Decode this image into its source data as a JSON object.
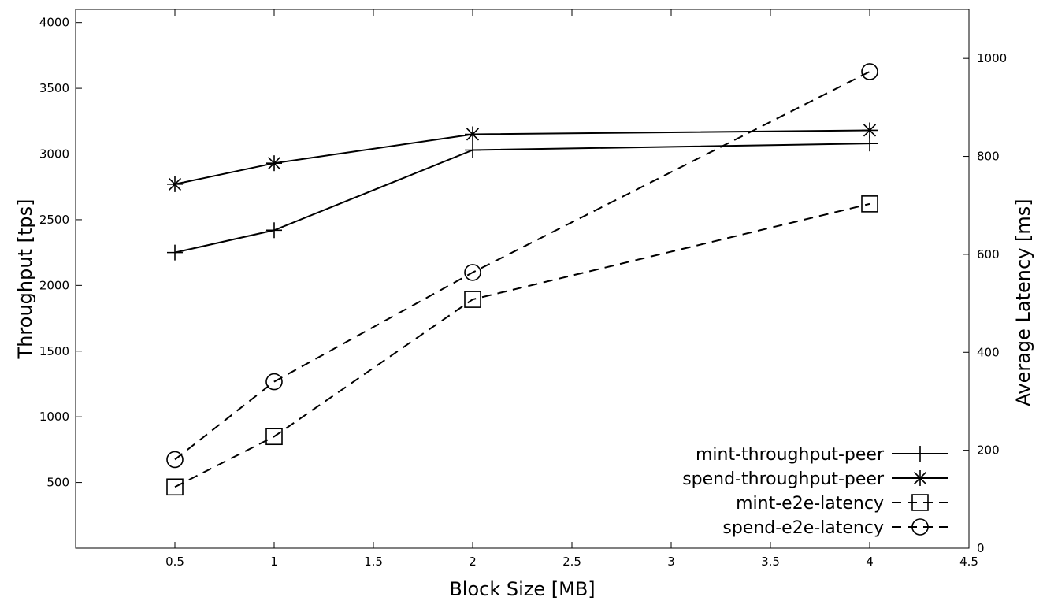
{
  "chart_data": {
    "type": "line",
    "title": "",
    "xlabel": "Block Size [MB]",
    "ylabel": "Throughput [tps]",
    "y2label": "Average Latency [ms]",
    "xlim": [
      0,
      4.5
    ],
    "ylim": [
      0,
      4100
    ],
    "y2lim": [
      0,
      1100
    ],
    "x_ticks": [
      "0.5",
      "1",
      "1.5",
      "2",
      "2.5",
      "3",
      "3.5",
      "4",
      "4.5"
    ],
    "y_ticks": [
      "500",
      "1000",
      "1500",
      "2000",
      "2500",
      "3000",
      "3500",
      "4000"
    ],
    "y2_ticks": [
      "0",
      "200",
      "400",
      "600",
      "800",
      "1000"
    ],
    "grid": false,
    "legend_position": "bottom-right",
    "x": [
      0.5,
      1,
      2,
      4
    ],
    "series": [
      {
        "name": "mint-throughput-peer",
        "axis": "left",
        "values": [
          2250,
          2420,
          3030,
          3080
        ],
        "marker": "plus",
        "dash": "solid",
        "color": "#000000"
      },
      {
        "name": "spend-throughput-peer",
        "axis": "left",
        "values": [
          2770,
          2930,
          3150,
          3180
        ],
        "marker": "star",
        "dash": "solid",
        "color": "#000000"
      },
      {
        "name": "mint-e2e-latency",
        "axis": "right",
        "values": [
          125,
          228,
          508,
          703
        ],
        "marker": "square",
        "dash": "dashed",
        "color": "#000000"
      },
      {
        "name": "spend-e2e-latency",
        "axis": "right",
        "values": [
          181,
          340,
          563,
          973
        ],
        "marker": "circle",
        "dash": "dashed",
        "color": "#000000"
      }
    ]
  }
}
